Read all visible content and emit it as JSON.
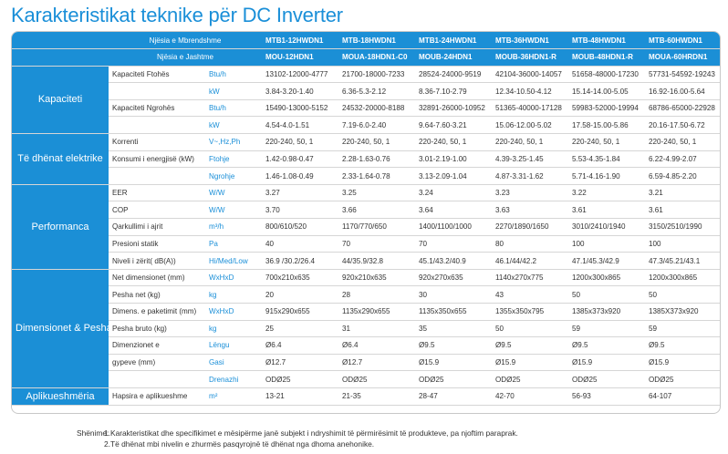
{
  "title": "Karakteristikat teknike për DC Inverter",
  "header": {
    "indoor_label": "Njësia e Mbrendshme",
    "outdoor_label": "Njësia e Jashtme",
    "indoor_models": [
      "MTB1-12HWDN1",
      "MTB-18HWDN1",
      "MTB1-24HWDN1",
      "MTB-36HWDN1",
      "MTB-48HWDN1",
      "MTB-60HWDN1"
    ],
    "outdoor_models": [
      "MOU-12HDN1",
      "MOUA-18HDN1-C0",
      "MOUB-24HDN1",
      "MOUB-36HDN1-R",
      "MOUB-48HDN1-R",
      "MOUA-60HRDN1"
    ]
  },
  "categories": {
    "kapaciteti": "Kapaciteti",
    "elektrike": "Të dhënat elektrike",
    "performanca": "Performanca",
    "dimensionet": "Dimensionet & Pesha & Gypet",
    "aplikueshmeria": "Aplikueshmëria"
  },
  "rows": {
    "ftohje_btu": {
      "label": "Kapaciteti Ftohës",
      "unit": "Btu/h",
      "values": [
        "13102-12000-4777",
        "21700-18000-7233",
        "28524-24000-9519",
        "42104-36000-14057",
        "51658-48000-17230",
        "57731-54592-19243"
      ]
    },
    "ftohje_kw": {
      "label": "",
      "unit": "kW",
      "values": [
        "3.84-3.20-1.40",
        "6.36-5.3-2.12",
        "8.36-7.10-2.79",
        "12.34-10.50-4.12",
        "15.14-14.00-5.05",
        "16.92-16.00-5.64"
      ]
    },
    "ngrohje_btu": {
      "label": "Kapaciteti Ngrohës",
      "unit": "Btu/h",
      "values": [
        "15490-13000-5152",
        "24532-20000-8188",
        "32891-26000-10952",
        "51365-40000-17128",
        "59983-52000-19994",
        "68786-65000-22928"
      ]
    },
    "ngrohje_kw": {
      "label": "",
      "unit": "kW",
      "values": [
        "4.54-4.0-1.51",
        "7.19-6.0-2.40",
        "9.64-7.60-3.21",
        "15.06-12.00-5.02",
        "17.58-15.00-5.86",
        "20.16-17.50-6.72"
      ]
    },
    "korrenti": {
      "label": "Korrenti",
      "unit": "V~,Hz,Ph",
      "values": [
        "220-240, 50, 1",
        "220-240, 50, 1",
        "220-240, 50, 1",
        "220-240, 50, 1",
        "220-240, 50, 1",
        "220-240, 50, 1"
      ]
    },
    "konsumi_ftohje": {
      "label": "Konsumi i energjisë (kW)",
      "unit": "Ftohje",
      "values": [
        "1.42-0.98-0.47",
        "2.28-1.63-0.76",
        "3.01-2.19-1.00",
        "4.39-3.25-1.45",
        "5.53-4.35-1.84",
        "6.22-4.99-2.07"
      ]
    },
    "konsumi_ngrohje": {
      "label": "",
      "unit": "Ngrohje",
      "values": [
        "1.46-1.08-0.49",
        "2.33-1.64-0.78",
        "3.13-2.09-1.04",
        "4.87-3.31-1.62",
        "5.71-4.16-1.90",
        "6.59-4.85-2.20"
      ]
    },
    "eer": {
      "label": "EER",
      "unit": "W/W",
      "values": [
        "3.27",
        "3.25",
        "3.24",
        "3.23",
        "3.22",
        "3.21"
      ]
    },
    "cop": {
      "label": "COP",
      "unit": "W/W",
      "values": [
        "3.70",
        "3.66",
        "3.64",
        "3.63",
        "3.61",
        "3.61"
      ]
    },
    "qarkullimi": {
      "label": "Qarkullimi i ajrit",
      "unit": "m³/h",
      "values": [
        "800/610/520",
        "1170/770/650",
        "1400/1100/1000",
        "2270/1890/1650",
        "3010/2410/1940",
        "3150/2510/1990"
      ]
    },
    "presioni": {
      "label": "Presioni statik",
      "unit": "Pa",
      "values": [
        "40",
        "70",
        "70",
        "80",
        "100",
        "100"
      ]
    },
    "zeri": {
      "label": "Niveli i zërit( dB(A))",
      "unit": "Hi/Med/Low",
      "values": [
        "36.9 /30.2/26.4",
        "44/35.9/32.8",
        "45.1/43.2/40.9",
        "46.1/44/42.2",
        "47.1/45.3/42.9",
        "47.3/45.21/43.1"
      ]
    },
    "dim_net": {
      "label": "Net dimensionet (mm)",
      "unit": "WxHxD",
      "values": [
        "700x210x635",
        "920x210x635",
        "920x270x635",
        "1140x270x775",
        "1200x300x865",
        "1200x300x865"
      ]
    },
    "pesha_net": {
      "label": "Pesha net (kg)",
      "unit": "kg",
      "values": [
        "20",
        "28",
        "30",
        "43",
        "50",
        "50"
      ]
    },
    "dim_paketim": {
      "label": "Dimens. e paketimit (mm)",
      "unit": "WxHxD",
      "values": [
        "915x290x655",
        "1135x290x655",
        "1135x350x655",
        "1355x350x795",
        "1385x373x920",
        "1385X373x920"
      ]
    },
    "pesha_bruto": {
      "label": "Pesha bruto (kg)",
      "unit": "kg",
      "values": [
        "25",
        "31",
        "35",
        "50",
        "59",
        "59"
      ]
    },
    "gyp_lengu": {
      "label": "Dimenzionet e",
      "unit": "Lëngu",
      "values": [
        "Ø6.4",
        "Ø6.4",
        "Ø9.5",
        "Ø9.5",
        "Ø9.5",
        "Ø9.5"
      ]
    },
    "gyp_gasi": {
      "label": "gypeve (mm)",
      "unit": "Gasi",
      "values": [
        "Ø12.7",
        "Ø12.7",
        "Ø15.9",
        "Ø15.9",
        "Ø15.9",
        "Ø15.9"
      ]
    },
    "gyp_drenazhi": {
      "label": "",
      "unit": "Drenazhi",
      "values": [
        "ODØ25",
        "ODØ25",
        "ODØ25",
        "ODØ25",
        "ODØ25",
        "ODØ25"
      ]
    },
    "hapsira": {
      "label": "Hapsira e aplikueshme",
      "unit": "m²",
      "values": [
        "13-21",
        "21-35",
        "28-47",
        "42-70",
        "56-93",
        "64-107"
      ]
    }
  },
  "notes": {
    "label": "Shënime:",
    "line1": "1.Karakteristikat dhe specifikimet e mësipërme janë subjekt i ndryshimit të përmirësimit të produkteve, pa njoftim paraprak.",
    "line2": "2.Të dhënat mbi nivelin e zhurmës pasqyrojnë të dhënat nga dhoma anehonike."
  }
}
